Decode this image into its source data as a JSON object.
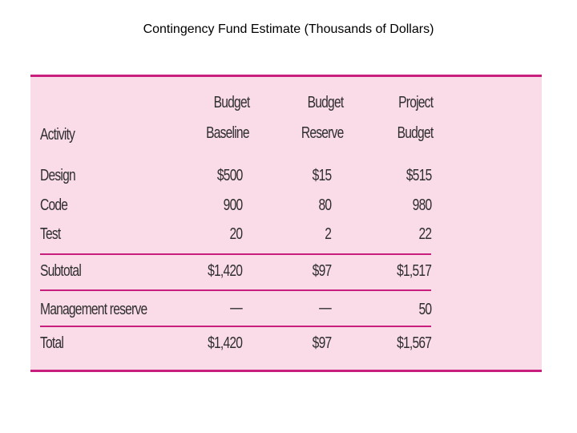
{
  "title": "Contingency Fund Estimate (Thousands of Dollars)",
  "table": {
    "columns": [
      {
        "line1": "",
        "line2": "Activity"
      },
      {
        "line1": "Budget",
        "line2": "Baseline"
      },
      {
        "line1": "Budget",
        "line2": "Reserve"
      },
      {
        "line1": "Project",
        "line2": "Budget"
      }
    ],
    "rows": [
      {
        "activity": "Design",
        "baseline": "$500",
        "reserve": "$15",
        "project": "$515"
      },
      {
        "activity": "Code",
        "baseline": "900",
        "reserve": "80",
        "project": "980"
      },
      {
        "activity": "Test",
        "baseline": "20",
        "reserve": "2",
        "project": "22"
      },
      {
        "activity": "Subtotal",
        "baseline": "$1,420",
        "reserve": "$97",
        "project": "$1,517"
      },
      {
        "activity": "Management reserve",
        "baseline": "—",
        "reserve": "—",
        "project": "50"
      },
      {
        "activity": "Total",
        "baseline": "$1,420",
        "reserve": "$97",
        "project": "$1,567"
      }
    ]
  },
  "colors": {
    "panel_background": "#fadbe8",
    "rule": "#c81f7e"
  }
}
